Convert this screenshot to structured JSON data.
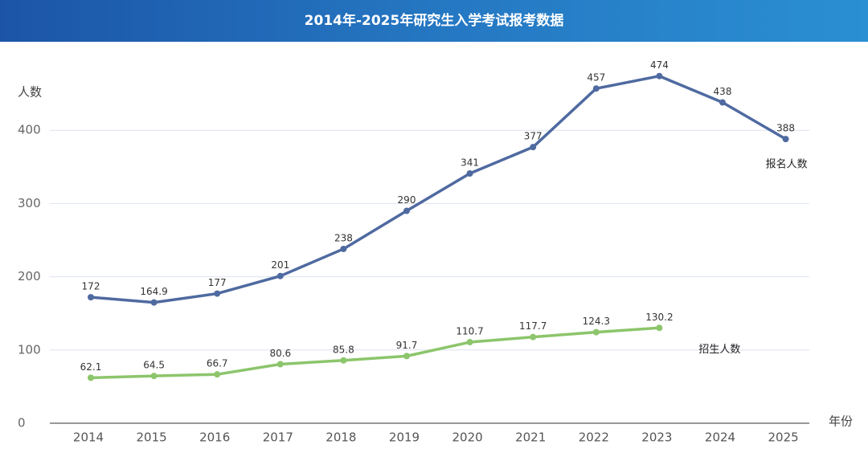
{
  "chart_data": {
    "type": "line",
    "title": "2014年-2025年研究生入学考试报考数据",
    "y_label": "人数",
    "x_label": "年份",
    "categories": [
      "2014",
      "2015",
      "2016",
      "2017",
      "2018",
      "2019",
      "2020",
      "2021",
      "2022",
      "2023",
      "2024",
      "2025"
    ],
    "series": [
      {
        "name": "报名人数",
        "color": "#4f6aa0",
        "values": [
          172,
          164.9,
          177,
          201,
          238,
          290,
          341,
          377,
          457,
          474,
          438,
          388
        ]
      },
      {
        "name": "招生人数",
        "color": "#8cc56b",
        "values": [
          62.1,
          64.5,
          66.7,
          80.6,
          85.8,
          91.7,
          110.7,
          117.7,
          124.3,
          130.2,
          null,
          null
        ]
      }
    ],
    "ylim": [
      0,
      500
    ],
    "yticks": [
      0,
      100,
      200,
      300,
      400
    ],
    "grid": true
  }
}
